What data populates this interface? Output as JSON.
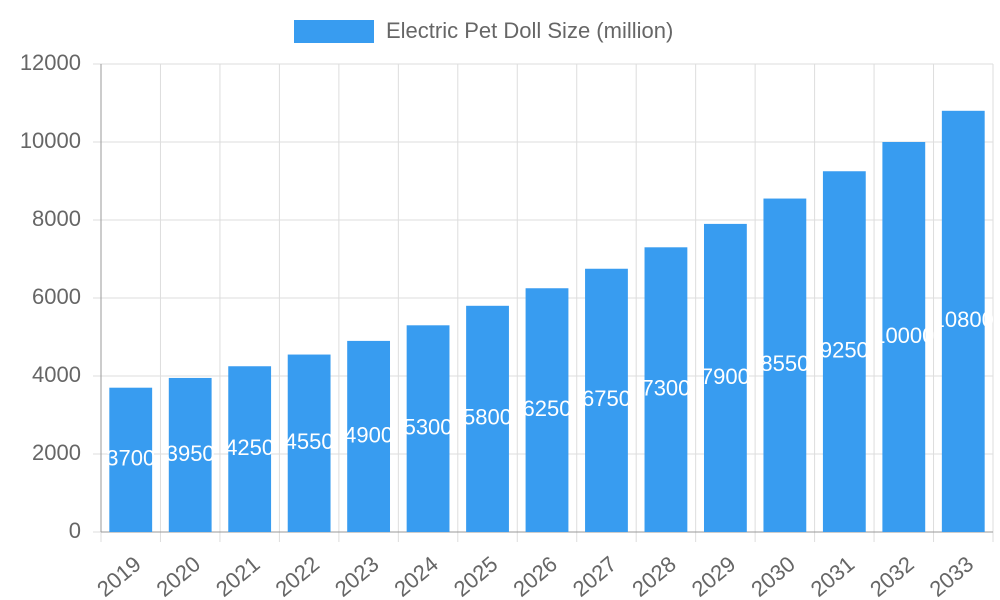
{
  "chart_data": {
    "type": "bar",
    "categories": [
      "2019",
      "2020",
      "2021",
      "2022",
      "2023",
      "2024",
      "2025",
      "2026",
      "2027",
      "2028",
      "2029",
      "2030",
      "2031",
      "2032",
      "2033"
    ],
    "series": [
      {
        "name": "Electric Pet Doll Size (million)",
        "color": "#389cf0",
        "values": [
          3700,
          3950,
          4250,
          4550,
          4900,
          5300,
          5800,
          6250,
          6750,
          7300,
          7900,
          8550,
          9250,
          10000,
          10800
        ]
      }
    ],
    "ylim": [
      0,
      12000
    ],
    "yticks": [
      0,
      2000,
      4000,
      6000,
      8000,
      10000,
      12000
    ],
    "grid": true,
    "legend": "top"
  }
}
